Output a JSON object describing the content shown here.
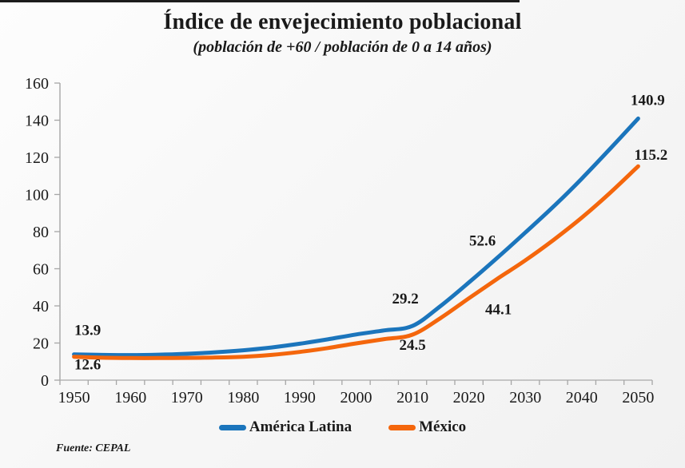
{
  "header": {
    "title": "Índice de envejecimiento poblacional",
    "subtitle": "(población de +60 / población de 0 a 14 años)"
  },
  "footer": {
    "source": "Fuente: CEPAL"
  },
  "legend": {
    "items": [
      {
        "label": "América Latina",
        "color": "#1b75bc"
      },
      {
        "label": "México",
        "color": "#f4660c"
      }
    ]
  },
  "chart_data": {
    "type": "line",
    "title": "Índice de envejecimiento poblacional",
    "subtitle": "(población de +60 / población de 0 a 14 años)",
    "xlabel": "",
    "ylabel": "",
    "x": [
      1950,
      1955,
      1960,
      1965,
      1970,
      1975,
      1980,
      1985,
      1990,
      1995,
      2000,
      2005,
      2010,
      2015,
      2020,
      2025,
      2030,
      2035,
      2040,
      2045,
      2050
    ],
    "xtick_labels": [
      "1950",
      "1960",
      "1970",
      "1980",
      "1990",
      "2000",
      "2010",
      "2020",
      "2030",
      "2040",
      "2050"
    ],
    "ylim": [
      0,
      160
    ],
    "yticks": [
      0,
      20,
      40,
      60,
      80,
      100,
      120,
      140,
      160
    ],
    "grid": false,
    "legend_position": "bottom",
    "series": [
      {
        "name": "América Latina",
        "color": "#1b75bc",
        "values": [
          13.9,
          13.6,
          13.5,
          13.7,
          14.2,
          15.0,
          16.1,
          17.6,
          19.6,
          22.0,
          24.6,
          26.8,
          29.2,
          40.0,
          52.6,
          65.8,
          79.5,
          93.5,
          108.5,
          124.5,
          140.9
        ],
        "labels": [
          {
            "year": 1950,
            "value": 13.9,
            "text": "13.9",
            "dx": 17,
            "dy": -24
          },
          {
            "year": 2010,
            "value": 29.2,
            "text": "29.2",
            "dx": -9,
            "dy": -28
          },
          {
            "year": 2020,
            "value": 52.6,
            "text": "52.6",
            "dx": 17,
            "dy": -46
          },
          {
            "year": 2050,
            "value": 140.9,
            "text": "140.9",
            "dx": 12,
            "dy": -17
          }
        ]
      },
      {
        "name": "México",
        "color": "#f4660c",
        "values": [
          12.6,
          12.1,
          11.9,
          11.9,
          12.0,
          12.2,
          12.6,
          13.6,
          15.2,
          17.3,
          19.8,
          22.1,
          24.5,
          33.5,
          44.1,
          54.5,
          64.5,
          75.5,
          87.5,
          100.8,
          115.2
        ],
        "labels": [
          {
            "year": 1950,
            "value": 12.6,
            "text": "12.6",
            "dx": 17,
            "dy": 16
          },
          {
            "year": 2010,
            "value": 24.5,
            "text": "24.5",
            "dx": 0,
            "dy": 19
          },
          {
            "year": 2020,
            "value": 44.1,
            "text": "44.1",
            "dx": 37,
            "dy": 20
          },
          {
            "year": 2050,
            "value": 115.2,
            "text": "115.2",
            "dx": 16,
            "dy": -8
          }
        ]
      }
    ],
    "source": "Fuente: CEPAL"
  }
}
